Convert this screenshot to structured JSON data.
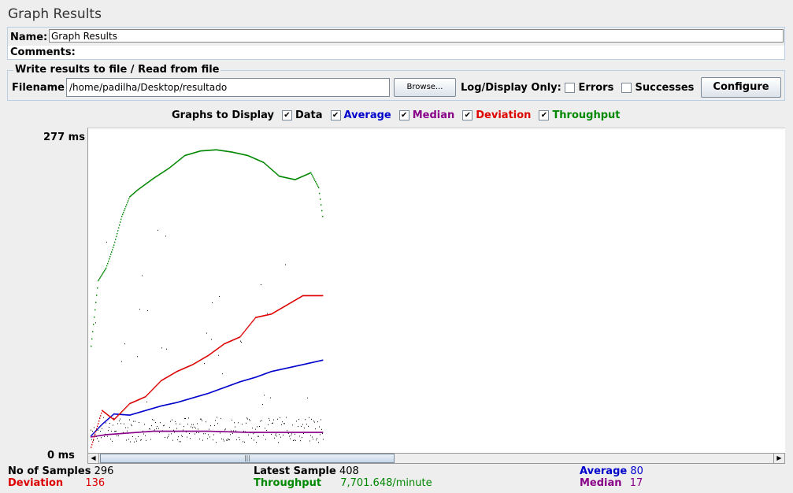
{
  "panel": {
    "title": "Graph Results"
  },
  "name": {
    "label": "Name:",
    "value": "Graph Results"
  },
  "comments": {
    "label": "Comments:"
  },
  "file": {
    "legend": "Write results to file / Read from file",
    "filename_label": "Filename",
    "filename_value": "/home/padilha/Desktop/resultado",
    "browse_label": "Browse...",
    "logdisplay_label": "Log/Display Only:",
    "errors_label": "Errors",
    "successes_label": "Successes",
    "configure_label": "Configure"
  },
  "graphs": {
    "label": "Graphs to Display",
    "options": [
      {
        "label": "Data",
        "color": "#000000",
        "checked": true
      },
      {
        "label": "Average",
        "color": "#0000cc",
        "checked": true
      },
      {
        "label": "Median",
        "color": "#880088",
        "checked": true
      },
      {
        "label": "Deviation",
        "color": "#dd0000",
        "checked": true
      },
      {
        "label": "Throughput",
        "color": "#008800",
        "checked": true
      }
    ]
  },
  "axis": {
    "top_label": "277 ms",
    "bottom_label": "0 ms"
  },
  "chart_data": {
    "type": "scatter",
    "ylim": [
      0,
      277
    ],
    "x_unit": "samples",
    "series": [
      {
        "name": "Average",
        "color": "#0000cc",
        "x": [
          1,
          15,
          30,
          50,
          70,
          90,
          110,
          130,
          150,
          170,
          190,
          210,
          230,
          250,
          270,
          296
        ],
        "values": [
          14,
          24,
          33,
          32,
          36,
          40,
          43,
          47,
          51,
          56,
          61,
          65,
          70,
          73,
          76,
          80
        ]
      },
      {
        "name": "Median",
        "color": "#880088",
        "x": [
          1,
          20,
          40,
          60,
          80,
          100,
          150,
          200,
          250,
          296
        ],
        "values": [
          13,
          15,
          16,
          17,
          18,
          18,
          18,
          17,
          17,
          17
        ]
      },
      {
        "name": "Deviation",
        "color": "#dd0000",
        "x": [
          1,
          15,
          30,
          50,
          70,
          90,
          110,
          130,
          150,
          170,
          190,
          210,
          230,
          250,
          270,
          296
        ],
        "values": [
          4,
          36,
          28,
          42,
          48,
          62,
          70,
          76,
          84,
          94,
          100,
          117,
          120,
          128,
          136,
          136
        ]
      },
      {
        "name": "Throughput",
        "color": "#008800",
        "x": [
          1,
          10,
          20,
          30,
          40,
          50,
          60,
          80,
          100,
          120,
          140,
          160,
          180,
          200,
          220,
          240,
          260,
          280,
          290,
          296
        ],
        "values": [
          92,
          149,
          160,
          180,
          205,
          222,
          228,
          238,
          247,
          258,
          262,
          263,
          261,
          258,
          252,
          240,
          237,
          243,
          230,
          200
        ]
      }
    ]
  },
  "stats": {
    "samples_label": "No of Samples",
    "samples_value": "296",
    "deviation_label": "Deviation",
    "deviation_value": "136",
    "latest_label": "Latest Sample",
    "latest_value": "408",
    "throughput_label": "Throughput",
    "throughput_value": "7,701.648/minute",
    "average_label": "Average",
    "average_value": "80",
    "median_label": "Median",
    "median_value": "17"
  }
}
